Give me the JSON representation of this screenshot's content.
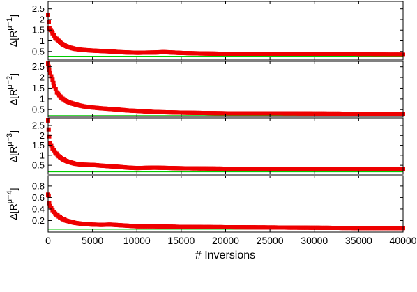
{
  "colors": {
    "data": "#ee0000",
    "reference": "#00cc00",
    "frame": "#000000"
  },
  "chart_data": {
    "type": "scatter",
    "xlabel": "# Inversions",
    "xlim": [
      0,
      40000
    ],
    "xticks": [
      0,
      5000,
      10000,
      15000,
      20000,
      25000,
      30000,
      35000,
      40000
    ],
    "xtick_labels": [
      "0",
      "5000",
      "10000",
      "15000",
      "20000",
      "25000",
      "30000",
      "35000",
      "40000"
    ],
    "grid": false,
    "legend": "none",
    "panels": [
      {
        "ylabel_main": "Δ[R",
        "ylabel_super": "μ=1",
        "ylabel_close": "]",
        "ylim": [
          0.1,
          2.85
        ],
        "yticks": [
          0.5,
          1,
          1.5,
          2,
          2.5
        ],
        "ytick_labels": [
          "0.5",
          "1",
          "1.5",
          "2",
          "2.5"
        ],
        "reference_y": 0.25,
        "series": [
          {
            "x": [
              0,
              80,
              150,
              300,
              500,
              800,
              1200,
              1600,
              2000,
              2500,
              3000,
              4000,
              5000,
              6000,
              7000,
              8000,
              9000,
              10000,
              12000,
              13000,
              15000,
              17000,
              20000,
              25000,
              30000,
              35000,
              40000
            ],
            "y": [
              2.2,
              1.9,
              1.58,
              1.5,
              1.35,
              1.15,
              1.0,
              0.85,
              0.75,
              0.68,
              0.62,
              0.57,
              0.54,
              0.52,
              0.5,
              0.47,
              0.45,
              0.44,
              0.45,
              0.47,
              0.43,
              0.41,
              0.39,
              0.38,
              0.37,
              0.36,
              0.35
            ]
          }
        ]
      },
      {
        "ylabel_main": "Δ[R",
        "ylabel_super": "μ=2",
        "ylabel_close": "]",
        "ylim": [
          0.15,
          2.75
        ],
        "yticks": [
          0.5,
          1,
          1.5,
          2,
          2.5
        ],
        "ytick_labels": [
          "0.5",
          "1",
          "1.5",
          "2",
          "2.5"
        ],
        "reference_y": 0.22,
        "series": [
          {
            "x": [
              0,
              60,
              120,
              200,
              350,
              500,
              700,
              1000,
              1500,
              2000,
              2500,
              3000,
              4000,
              5000,
              6000,
              7000,
              8000,
              9000,
              10000,
              12000,
              15000,
              20000,
              25000,
              30000,
              35000,
              40000
            ],
            "y": [
              2.65,
              2.5,
              2.35,
              2.2,
              2.05,
              1.9,
              1.6,
              1.3,
              1.05,
              0.9,
              0.82,
              0.75,
              0.65,
              0.6,
              0.56,
              0.53,
              0.5,
              0.46,
              0.44,
              0.39,
              0.36,
              0.33,
              0.33,
              0.32,
              0.31,
              0.3
            ]
          }
        ]
      },
      {
        "ylabel_main": "Δ[R",
        "ylabel_super": "μ=3",
        "ylabel_close": "]",
        "ylim": [
          0.05,
          2.85
        ],
        "yticks": [
          0.5,
          1,
          1.5,
          2,
          2.5
        ],
        "ytick_labels": [
          "0.5",
          "1",
          "1.5",
          "2",
          "2.5"
        ],
        "reference_y": 0.17,
        "series": [
          {
            "x": [
              0,
              60,
              120,
              200,
              350,
              500,
              800,
              1200,
              1600,
              2000,
              2500,
              3000,
              3500,
              4000,
              5000,
              6000,
              7000,
              8000,
              9000,
              10000,
              12000,
              15000,
              20000,
              25000,
              30000,
              35000,
              40000
            ],
            "y": [
              2.75,
              2.3,
              1.95,
              1.6,
              1.5,
              1.35,
              1.15,
              0.95,
              0.82,
              0.72,
              0.65,
              0.58,
              0.55,
              0.53,
              0.52,
              0.48,
              0.45,
              0.42,
              0.38,
              0.36,
              0.38,
              0.35,
              0.33,
              0.32,
              0.32,
              0.31,
              0.3
            ]
          }
        ]
      },
      {
        "ylabel_main": "Δ[R",
        "ylabel_super": "μ=4",
        "ylabel_close": "]",
        "ylim": [
          0.0,
          0.98
        ],
        "yticks": [
          0.2,
          0.4,
          0.6,
          0.8
        ],
        "ytick_labels": [
          "0.2",
          "0.4",
          "0.6",
          "0.8"
        ],
        "reference_y": 0.05,
        "series": [
          {
            "x": [
              0,
              60,
              120,
              200,
              350,
              500,
              800,
              1200,
              1600,
              2000,
              2500,
              3000,
              3500,
              4000,
              5000,
              6000,
              7000,
              8000,
              9000,
              10000,
              12000,
              15000,
              20000,
              25000,
              30000,
              35000,
              40000
            ],
            "y": [
              0.65,
              0.63,
              0.5,
              0.45,
              0.42,
              0.38,
              0.32,
              0.27,
              0.23,
              0.2,
              0.18,
              0.16,
              0.15,
              0.14,
              0.13,
              0.125,
              0.13,
              0.12,
              0.11,
              0.1,
              0.1,
              0.09,
              0.085,
              0.08,
              0.075,
              0.07,
              0.07
            ]
          }
        ]
      }
    ]
  }
}
